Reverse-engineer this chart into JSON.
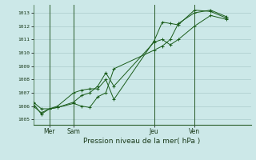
{
  "bg_color": "#cce8e8",
  "grid_color": "#aacccc",
  "line_color": "#1a5c1a",
  "marker_color": "#1a5c1a",
  "title": "Pression niveau de la mer( hPa )",
  "ylabel_ticks": [
    1005,
    1006,
    1007,
    1008,
    1009,
    1010,
    1011,
    1012,
    1013
  ],
  "ylim": [
    1004.6,
    1013.6
  ],
  "xlim": [
    0,
    108
  ],
  "xtick_positions": [
    8,
    20,
    60,
    80
  ],
  "xtick_labels": [
    "Mer",
    "Sam",
    "Jeu",
    "Ven"
  ],
  "vline_positions": [
    8,
    20,
    60,
    80
  ],
  "series": [
    {
      "x": [
        0,
        4,
        8,
        12,
        20,
        24,
        28,
        32,
        36,
        40,
        60,
        64,
        68,
        72,
        80,
        88,
        96
      ],
      "y": [
        1006.3,
        1005.8,
        1005.8,
        1006.0,
        1007.0,
        1007.2,
        1007.3,
        1007.3,
        1008.0,
        1006.5,
        1010.9,
        1012.3,
        1012.2,
        1012.1,
        1013.2,
        1013.1,
        1012.6
      ]
    },
    {
      "x": [
        0,
        4,
        8,
        12,
        20,
        24,
        28,
        32,
        36,
        40,
        60,
        64,
        68,
        72,
        80,
        88,
        96
      ],
      "y": [
        1006.2,
        1005.4,
        1005.8,
        1005.9,
        1006.3,
        1006.8,
        1007.0,
        1007.5,
        1008.5,
        1007.5,
        1010.8,
        1011.0,
        1010.6,
        1011.0,
        1012.0,
        1012.8,
        1012.5
      ]
    },
    {
      "x": [
        0,
        4,
        8,
        12,
        20,
        24,
        28,
        32,
        36,
        40,
        60,
        64,
        68,
        72,
        80,
        88,
        96
      ],
      "y": [
        1006.0,
        1005.5,
        1005.8,
        1005.9,
        1006.2,
        1006.0,
        1005.9,
        1006.7,
        1007.0,
        1008.8,
        1010.2,
        1010.5,
        1011.0,
        1012.2,
        1013.0,
        1013.2,
        1012.7
      ]
    }
  ]
}
